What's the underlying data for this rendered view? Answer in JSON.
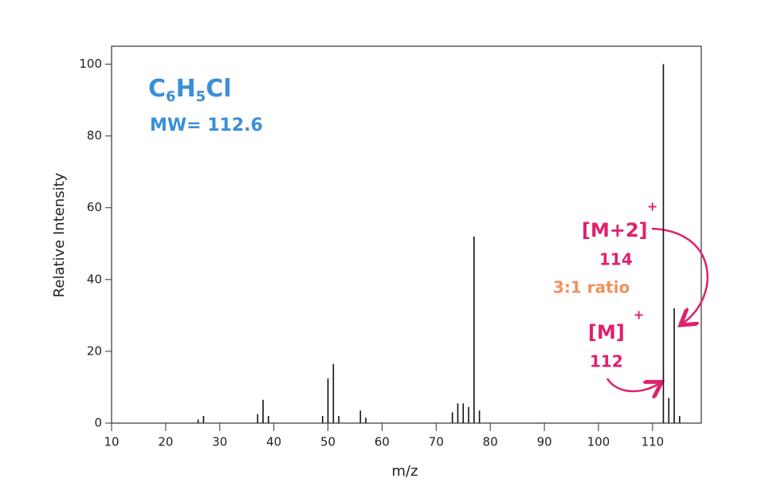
{
  "chart_data": {
    "type": "bar",
    "x_label": "m/z",
    "y_label": "Relative Intensity",
    "x": [
      26,
      27,
      37,
      38,
      39,
      49,
      50,
      51,
      52,
      56,
      57,
      73,
      74,
      75,
      76,
      77,
      78,
      112,
      113,
      114,
      115
    ],
    "values": [
      1,
      2,
      2.5,
      6.5,
      2,
      2,
      12.5,
      16.5,
      2,
      3.5,
      1.5,
      3,
      5.5,
      5.5,
      4.5,
      52,
      3.5,
      100,
      7,
      32,
      2
    ],
    "color": "#111111",
    "xlim": [
      10,
      119
    ],
    "ylim": [
      0,
      105
    ],
    "xticks": [
      10,
      20,
      30,
      40,
      50,
      60,
      70,
      80,
      90,
      100,
      110
    ],
    "yticks": [
      0,
      20,
      40,
      60,
      80,
      100
    ],
    "annotations": {
      "formula": [
        "C",
        "6",
        "H",
        "5",
        "Cl"
      ],
      "mw": "MW= 112.6",
      "m2": "[M+2]",
      "m2_charge": "+",
      "m2_mass": "114",
      "ratio": "3:1 ratio",
      "m": "[M]",
      "m_charge": "+",
      "m_mass": "112"
    }
  }
}
